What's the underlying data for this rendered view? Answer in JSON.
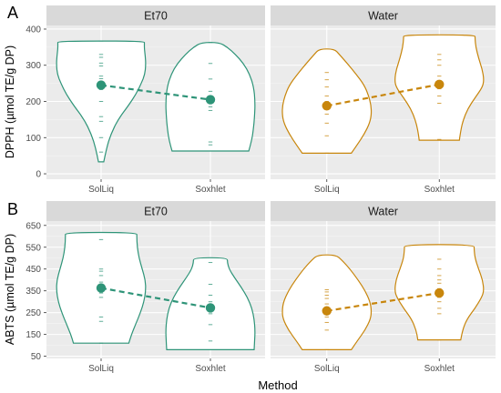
{
  "figure": {
    "x_title": "Method",
    "colors": {
      "panel_bg": "#ebebeb",
      "strip_bg": "#d9d9d9",
      "grid_major": "#ffffff",
      "et70": "#2e9478",
      "water": "#c8860c"
    }
  },
  "chart_data": [
    {
      "type": "violin",
      "tag": "A",
      "ylabel": "DPPH (µmol TE/g DP)",
      "ylim": [
        -15,
        410
      ],
      "yticks": [
        0,
        100,
        200,
        300,
        400
      ],
      "xcategories": [
        "SolLiq",
        "Soxhlet"
      ],
      "panels": [
        {
          "facet": "Et70",
          "color": "#2e9478",
          "groups": [
            {
              "method": "SolLiq",
              "mean": 245,
              "min": 33,
              "max": 367,
              "points": [
                60,
                100,
                145,
                158,
                200,
                233,
                245,
                253,
                263,
                270,
                298,
                306,
                322,
                330,
                367
              ],
              "profile": [
                [
                  33,
                  0.06
                ],
                [
                  70,
                  0.12
                ],
                [
                  110,
                  0.22
                ],
                [
                  150,
                  0.38
                ],
                [
                  190,
                  0.62
                ],
                [
                  220,
                  0.78
                ],
                [
                  250,
                  0.9
                ],
                [
                  275,
                  0.98
                ],
                [
                  300,
                  1.0
                ],
                [
                  325,
                  0.99
                ],
                [
                  345,
                  0.97
                ],
                [
                  360,
                  0.97
                ],
                [
                  367,
                  0.97
                ]
              ]
            },
            {
              "method": "Soxhlet",
              "mean": 205,
              "min": 63,
              "max": 363,
              "points": [
                80,
                88,
                175,
                185,
                195,
                205,
                215,
                228,
                262,
                305,
                363
              ],
              "profile": [
                [
                  63,
                  0.86
                ],
                [
                  90,
                  0.92
                ],
                [
                  120,
                  0.96
                ],
                [
                  160,
                  0.99
                ],
                [
                  200,
                  1.0
                ],
                [
                  240,
                  0.97
                ],
                [
                  275,
                  0.88
                ],
                [
                  305,
                  0.74
                ],
                [
                  330,
                  0.56
                ],
                [
                  350,
                  0.38
                ],
                [
                  363,
                  0.2
                ]
              ]
            }
          ]
        },
        {
          "facet": "Water",
          "color": "#c8860c",
          "groups": [
            {
              "method": "SolLiq",
              "mean": 188,
              "min": 57,
              "max": 345,
              "points": [
                57,
                105,
                140,
                165,
                180,
                188,
                200,
                215,
                240,
                260,
                280
              ],
              "profile": [
                [
                  57,
                  0.55
                ],
                [
                  80,
                  0.68
                ],
                [
                  110,
                  0.84
                ],
                [
                  140,
                  0.96
                ],
                [
                  165,
                  1.0
                ],
                [
                  190,
                  0.99
                ],
                [
                  215,
                  0.94
                ],
                [
                  245,
                  0.84
                ],
                [
                  275,
                  0.66
                ],
                [
                  305,
                  0.46
                ],
                [
                  330,
                  0.28
                ],
                [
                  345,
                  0.17
                ]
              ]
            },
            {
              "method": "Soxhlet",
              "mean": 247,
              "min": 93,
              "max": 384,
              "points": [
                95,
                195,
                215,
                235,
                247,
                258,
                270,
                300,
                315,
                330
              ],
              "profile": [
                [
                  93,
                  0.45
                ],
                [
                  120,
                  0.48
                ],
                [
                  150,
                  0.54
                ],
                [
                  180,
                  0.64
                ],
                [
                  210,
                  0.8
                ],
                [
                  240,
                  0.97
                ],
                [
                  260,
                  1.0
                ],
                [
                  290,
                  0.96
                ],
                [
                  320,
                  0.88
                ],
                [
                  350,
                  0.82
                ],
                [
                  375,
                  0.8
                ],
                [
                  384,
                  0.8
                ]
              ]
            }
          ]
        }
      ]
    },
    {
      "type": "violin",
      "tag": "B",
      "ylabel": "ABTS (µmol TE/g DP)",
      "ylim": [
        40,
        670
      ],
      "yticks": [
        50,
        150,
        250,
        350,
        450,
        550,
        650
      ],
      "xcategories": [
        "SolLiq",
        "Soxhlet"
      ],
      "panels": [
        {
          "facet": "Et70",
          "color": "#2e9478",
          "groups": [
            {
              "method": "SolLiq",
              "mean": 363,
              "min": 110,
              "max": 618,
              "points": [
                110,
                210,
                230,
                320,
                340,
                355,
                363,
                375,
                390,
                420,
                440,
                450,
                585
              ],
              "profile": [
                [
                  110,
                  0.62
                ],
                [
                  150,
                  0.68
                ],
                [
                  200,
                  0.78
                ],
                [
                  250,
                  0.88
                ],
                [
                  300,
                  0.96
                ],
                [
                  350,
                  1.0
                ],
                [
                  400,
                  0.99
                ],
                [
                  450,
                  0.92
                ],
                [
                  500,
                  0.85
                ],
                [
                  550,
                  0.81
                ],
                [
                  600,
                  0.8
                ],
                [
                  618,
                  0.8
                ]
              ]
            },
            {
              "method": "Soxhlet",
              "mean": 272,
              "min": 80,
              "max": 502,
              "points": [
                120,
                195,
                245,
                265,
                272,
                285,
                300,
                330,
                380,
                480
              ],
              "profile": [
                [
                  80,
                  0.98
                ],
                [
                  120,
                  0.99
                ],
                [
                  170,
                  1.0
                ],
                [
                  220,
                  0.98
                ],
                [
                  270,
                  0.93
                ],
                [
                  320,
                  0.83
                ],
                [
                  370,
                  0.68
                ],
                [
                  410,
                  0.54
                ],
                [
                  450,
                  0.42
                ],
                [
                  480,
                  0.38
                ],
                [
                  502,
                  0.38
                ]
              ]
            }
          ]
        },
        {
          "facet": "Water",
          "color": "#c8860c",
          "groups": [
            {
              "method": "SolLiq",
              "mean": 258,
              "min": 80,
              "max": 515,
              "points": [
                80,
                170,
                205,
                230,
                250,
                258,
                270,
                290,
                315,
                330,
                345,
                355
              ],
              "profile": [
                [
                  80,
                  0.55
                ],
                [
                  120,
                  0.68
                ],
                [
                  170,
                  0.86
                ],
                [
                  220,
                  0.98
                ],
                [
                  260,
                  1.0
                ],
                [
                  300,
                  0.97
                ],
                [
                  350,
                  0.86
                ],
                [
                  400,
                  0.7
                ],
                [
                  450,
                  0.52
                ],
                [
                  490,
                  0.34
                ],
                [
                  515,
                  0.2
                ]
              ]
            },
            {
              "method": "Soxhlet",
              "mean": 340,
              "min": 125,
              "max": 562,
              "points": [
                125,
                245,
                270,
                300,
                320,
                340,
                360,
                385,
                400,
                420,
                450,
                495
              ],
              "profile": [
                [
                  125,
                  0.48
                ],
                [
                  170,
                  0.52
                ],
                [
                  220,
                  0.62
                ],
                [
                  270,
                  0.8
                ],
                [
                  320,
                  0.95
                ],
                [
                  350,
                  1.0
                ],
                [
                  400,
                  0.97
                ],
                [
                  450,
                  0.88
                ],
                [
                  500,
                  0.8
                ],
                [
                  540,
                  0.78
                ],
                [
                  562,
                  0.78
                ]
              ]
            }
          ]
        }
      ]
    }
  ]
}
